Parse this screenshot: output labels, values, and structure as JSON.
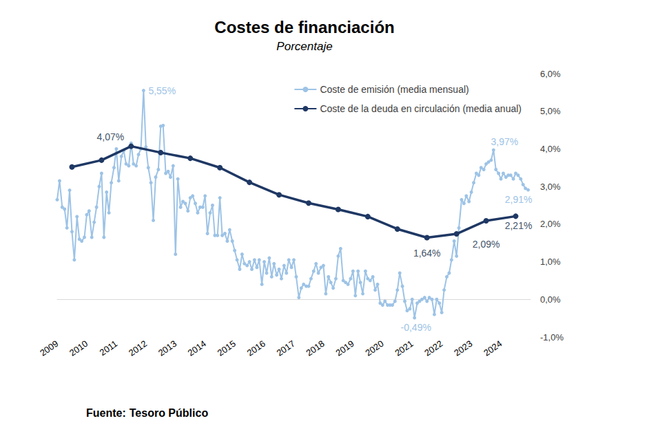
{
  "chart_data": {
    "type": "line",
    "title": "Costes de financiación",
    "subtitle": "Porcentaje",
    "source_label": "Fuente:",
    "source": "Tesoro Público",
    "xlim": [
      2009,
      2025
    ],
    "xticks": [
      2009,
      2010,
      2011,
      2012,
      2013,
      2014,
      2015,
      2016,
      2017,
      2018,
      2019,
      2020,
      2021,
      2022,
      2023,
      2024
    ],
    "ylim": [
      -1,
      6
    ],
    "yticks": [
      {
        "value": -1,
        "label": "-1,0%"
      },
      {
        "value": 0,
        "label": "0,0%"
      },
      {
        "value": 1,
        "label": "1,0%"
      },
      {
        "value": 2,
        "label": "2,0%"
      },
      {
        "value": 3,
        "label": "3,0%"
      },
      {
        "value": 4,
        "label": "4,0%"
      },
      {
        "value": 5,
        "label": "5,0%"
      },
      {
        "value": 6,
        "label": "6,0%"
      }
    ],
    "grid": false,
    "legend": "top-right",
    "series": [
      {
        "name": "Coste de emisión (media mensual)",
        "color": "#9dc3e6",
        "marker": "circle",
        "line_style": "solid",
        "x": [
          2009,
          2009.08,
          2009.17,
          2009.25,
          2009.33,
          2009.42,
          2009.5,
          2009.58,
          2009.67,
          2009.75,
          2009.83,
          2009.92,
          2010,
          2010.08,
          2010.17,
          2010.25,
          2010.33,
          2010.42,
          2010.5,
          2010.58,
          2010.67,
          2010.75,
          2010.83,
          2010.92,
          2011,
          2011.08,
          2011.17,
          2011.25,
          2011.33,
          2011.42,
          2011.5,
          2011.58,
          2011.67,
          2011.75,
          2011.83,
          2011.92,
          2012,
          2012.08,
          2012.17,
          2012.25,
          2012.33,
          2012.42,
          2012.5,
          2012.58,
          2012.67,
          2012.75,
          2012.83,
          2012.92,
          2013,
          2013.08,
          2013.17,
          2013.25,
          2013.33,
          2013.42,
          2013.5,
          2013.58,
          2013.67,
          2013.75,
          2013.83,
          2013.92,
          2014,
          2014.08,
          2014.17,
          2014.25,
          2014.33,
          2014.42,
          2014.5,
          2014.58,
          2014.67,
          2014.75,
          2014.83,
          2014.92,
          2015,
          2015.08,
          2015.17,
          2015.25,
          2015.33,
          2015.42,
          2015.5,
          2015.58,
          2015.67,
          2015.75,
          2015.83,
          2015.92,
          2016,
          2016.08,
          2016.17,
          2016.25,
          2016.33,
          2016.42,
          2016.5,
          2016.58,
          2016.67,
          2016.75,
          2016.83,
          2016.92,
          2017,
          2017.08,
          2017.17,
          2017.25,
          2017.33,
          2017.42,
          2017.5,
          2017.58,
          2017.67,
          2017.75,
          2017.83,
          2017.92,
          2018,
          2018.08,
          2018.17,
          2018.25,
          2018.33,
          2018.42,
          2018.5,
          2018.58,
          2018.67,
          2018.75,
          2018.83,
          2018.92,
          2019,
          2019.08,
          2019.17,
          2019.25,
          2019.33,
          2019.42,
          2019.5,
          2019.58,
          2019.67,
          2019.75,
          2019.83,
          2019.92,
          2020,
          2020.08,
          2020.17,
          2020.25,
          2020.33,
          2020.42,
          2020.5,
          2020.58,
          2020.67,
          2020.75,
          2020.83,
          2020.92,
          2021,
          2021.08,
          2021.17,
          2021.25,
          2021.33,
          2021.42,
          2021.5,
          2021.58,
          2021.67,
          2021.75,
          2021.83,
          2021.92,
          2022,
          2022.08,
          2022.17,
          2022.25,
          2022.33,
          2022.42,
          2022.5,
          2022.58,
          2022.67,
          2022.75,
          2022.83,
          2022.92,
          2023,
          2023.08,
          2023.17,
          2023.25,
          2023.33,
          2023.42,
          2023.5,
          2023.58,
          2023.67,
          2023.75,
          2023.83,
          2023.92,
          2024,
          2024.08,
          2024.17,
          2024.25,
          2024.33,
          2024.42,
          2024.5,
          2024.58,
          2024.67,
          2024.75,
          2024.83,
          2024.92
        ],
        "values": [
          2.65,
          3.15,
          2.45,
          2.4,
          1.9,
          2.9,
          1.8,
          1.05,
          2.2,
          1.6,
          1.55,
          1.65,
          2.25,
          2.35,
          1.65,
          2.05,
          2.45,
          3.0,
          3.35,
          1.65,
          2.85,
          2.3,
          3.1,
          3.5,
          4.0,
          3.15,
          3.8,
          3.95,
          3.6,
          3.55,
          4.15,
          3.6,
          3.55,
          3.85,
          4.0,
          5.55,
          4.05,
          3.5,
          3.1,
          2.1,
          3.25,
          3.45,
          4.6,
          4.62,
          3.35,
          3.4,
          3.25,
          3.55,
          1.2,
          3.2,
          2.45,
          2.6,
          2.55,
          2.35,
          2.7,
          2.75,
          2.55,
          2.3,
          2.45,
          2.45,
          2.75,
          1.75,
          2.3,
          2.5,
          1.7,
          1.7,
          2.7,
          1.7,
          1.75,
          1.55,
          1.85,
          1.55,
          1.3,
          1.05,
          0.8,
          1.2,
          0.95,
          0.9,
          1.0,
          0.8,
          1.05,
          0.85,
          1.05,
          0.4,
          1.0,
          0.7,
          1.1,
          0.6,
          0.95,
          0.65,
          0.8,
          0.55,
          0.9,
          0.7,
          1.05,
          0.85,
          1.05,
          0.6,
          0.05,
          0.3,
          0.4,
          0.35,
          0.35,
          0.55,
          0.75,
          0.95,
          0.7,
          0.85,
          0.9,
          0.15,
          0.6,
          0.45,
          0.3,
          0.55,
          1.15,
          1.35,
          0.5,
          0.45,
          0.4,
          0.55,
          0.75,
          0.1,
          0.75,
          0.45,
          0.15,
          0.75,
          0.55,
          0.5,
          0.6,
          0.25,
          0.4,
          -0.1,
          -0.15,
          -0.05,
          -0.15,
          -0.15,
          -0.15,
          -0.05,
          0.25,
          0.7,
          0.35,
          -0.05,
          -0.3,
          -0.25,
          0.0,
          -0.49,
          -0.1,
          -0.05,
          0.0,
          0.05,
          -0.05,
          0.05,
          0.0,
          -0.4,
          0.0,
          -0.1,
          -0.35,
          0.25,
          0.6,
          0.7,
          1.05,
          1.55,
          1.15,
          1.9,
          2.65,
          2.55,
          2.75,
          2.6,
          2.85,
          3.1,
          3.35,
          3.3,
          3.5,
          3.45,
          3.6,
          3.65,
          3.7,
          3.97,
          3.45,
          3.35,
          3.2,
          3.35,
          3.25,
          3.3,
          3.3,
          3.2,
          3.35,
          3.3,
          3.2,
          3.05,
          2.95,
          2.91
        ],
        "annotations": [
          {
            "x": 2011.92,
            "y": 5.55,
            "label": "5,55%"
          },
          {
            "x": 2021.08,
            "y": -0.49,
            "label": "-0,49%"
          },
          {
            "x": 2023.75,
            "y": 3.97,
            "label": "3,97%"
          },
          {
            "x": 2024.92,
            "y": 2.91,
            "label": "2,91%"
          }
        ]
      },
      {
        "name": "Coste de la deuda en circulación (media anual)",
        "color": "#1f3864",
        "marker": "circle",
        "line_style": "solid",
        "x": [
          2009.5,
          2010.5,
          2011.5,
          2012.5,
          2013.5,
          2014.5,
          2015.5,
          2016.5,
          2017.5,
          2018.5,
          2019.5,
          2020.5,
          2021.5,
          2022.5,
          2023.5,
          2024.5
        ],
        "values": [
          3.52,
          3.7,
          4.07,
          3.9,
          3.75,
          3.5,
          3.11,
          2.78,
          2.56,
          2.39,
          2.2,
          1.87,
          1.64,
          1.74,
          2.09,
          2.21
        ],
        "annotations": [
          {
            "x": 2011.5,
            "y": 4.07,
            "label": "4,07%"
          },
          {
            "x": 2021.5,
            "y": 1.64,
            "label": "1,64%"
          },
          {
            "x": 2023.5,
            "y": 2.09,
            "label": "2,09%"
          },
          {
            "x": 2024.5,
            "y": 2.21,
            "label": "2,21%"
          }
        ]
      }
    ]
  }
}
